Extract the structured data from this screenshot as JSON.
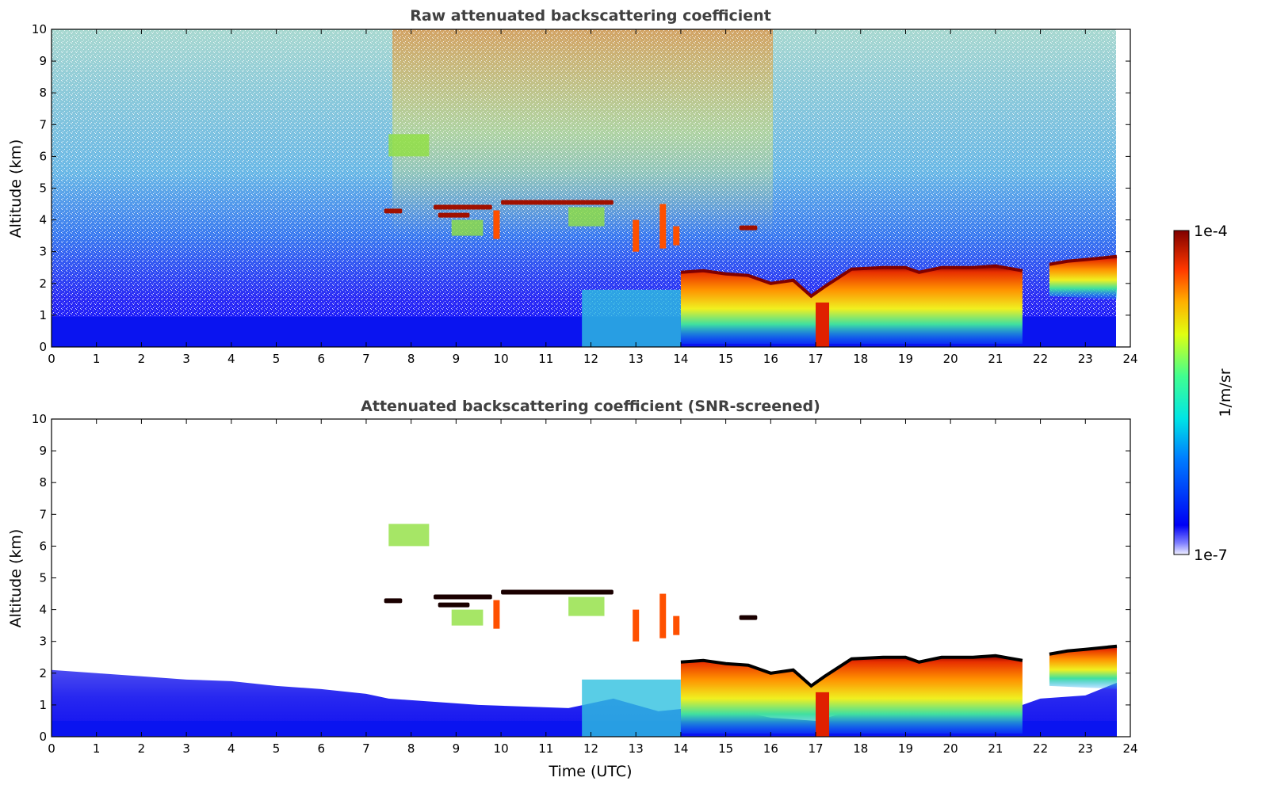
{
  "chart_data": [
    {
      "type": "heatmap",
      "title": "Raw attenuated backscattering coefficient",
      "xlabel": "",
      "ylabel": "Altitude (km)",
      "xlim": [
        0,
        24
      ],
      "ylim": [
        0,
        10
      ],
      "x_ticks": [
        "0",
        "1",
        "2",
        "3",
        "4",
        "5",
        "6",
        "7",
        "8",
        "9",
        "10",
        "11",
        "12",
        "13",
        "14",
        "15",
        "16",
        "17",
        "18",
        "19",
        "20",
        "21",
        "22",
        "23",
        "24"
      ],
      "y_ticks": [
        "0",
        "1",
        "2",
        "3",
        "4",
        "5",
        "6",
        "7",
        "8",
        "9",
        "10"
      ],
      "data_extent_x": [
        0,
        23.7
      ],
      "background_noise": "signal decreases with altitude; noisy green-yellow above 5 km between 8 and 16 UTC",
      "features": [
        {
          "kind": "boundary_layer",
          "x": [
            0,
            23.7
          ],
          "y_top": 0.5,
          "level": "low"
        },
        {
          "kind": "cloud_layer",
          "x": [
            7.4,
            7.8
          ],
          "y": 4.3,
          "level": "high"
        },
        {
          "kind": "cloud_layer",
          "x": [
            8.5,
            9.8
          ],
          "y": 4.4,
          "level": "high"
        },
        {
          "kind": "cloud_layer",
          "x": [
            10.0,
            12.5
          ],
          "y": 4.55,
          "level": "high"
        },
        {
          "kind": "cloud_layer",
          "x": [
            14.0,
            21.6
          ],
          "y": 2.4,
          "level": "high"
        },
        {
          "kind": "cloud_layer",
          "x": [
            22.2,
            23.7
          ],
          "y": 2.8,
          "level": "high"
        }
      ]
    },
    {
      "type": "heatmap",
      "title": "Attenuated backscattering coefficient (SNR-screened)",
      "xlabel": "Time (UTC)",
      "ylabel": "Altitude (km)",
      "xlim": [
        0,
        24
      ],
      "ylim": [
        0,
        10
      ],
      "x_ticks": [
        "0",
        "1",
        "2",
        "3",
        "4",
        "5",
        "6",
        "7",
        "8",
        "9",
        "10",
        "11",
        "12",
        "13",
        "14",
        "15",
        "16",
        "17",
        "18",
        "19",
        "20",
        "21",
        "22",
        "23",
        "24"
      ],
      "y_ticks": [
        "0",
        "1",
        "2",
        "3",
        "4",
        "5",
        "6",
        "7",
        "8",
        "9",
        "10"
      ],
      "data_extent_x": [
        0,
        23.7
      ],
      "screening": "pixels with low SNR removed (white)",
      "features": [
        {
          "kind": "boundary_layer",
          "x": [
            0,
            23.7
          ],
          "y_top": 2.0,
          "level": "low"
        },
        {
          "kind": "cloud_layer",
          "x": [
            14.0,
            21.6
          ],
          "y": 2.4,
          "level": "high"
        },
        {
          "kind": "cloud_layer",
          "x": [
            22.2,
            23.7
          ],
          "y": 2.8,
          "level": "high"
        }
      ]
    }
  ],
  "colorbar": {
    "label": "1/m/sr",
    "max_label": "1e-4",
    "min_label": "1e-7",
    "scale": "log",
    "range": [
      1e-07,
      0.0001
    ],
    "colormap": "jet"
  },
  "colors": {
    "title": "#404040",
    "low": "#0a1cf0",
    "mid": "#2fd8d8",
    "high_core": "#e64a00",
    "peak": "#8b0000"
  }
}
